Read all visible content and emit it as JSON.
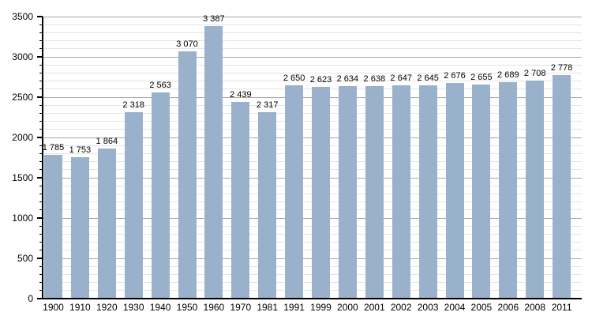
{
  "chart_data": {
    "type": "bar",
    "title": "",
    "xlabel": "",
    "ylabel": "",
    "categories": [
      "1900",
      "1910",
      "1920",
      "1930",
      "1940",
      "1950",
      "1960",
      "1970",
      "1981",
      "1991",
      "1999",
      "2000",
      "2001",
      "2002",
      "2003",
      "2004",
      "2005",
      "2006",
      "2008",
      "2011"
    ],
    "values": [
      1785,
      1753,
      1864,
      2318,
      2563,
      3070,
      3387,
      2439,
      2317,
      2650,
      2623,
      2634,
      2638,
      2647,
      2645,
      2676,
      2655,
      2689,
      2708,
      2778
    ],
    "value_labels": [
      "1 785",
      "1 753",
      "1 864",
      "2 318",
      "2 563",
      "3 070",
      "3 387",
      "2 439",
      "2 317",
      "2 650",
      "2 623",
      "2 634",
      "2 638",
      "2 647",
      "2 645",
      "2 676",
      "2 655",
      "2 689",
      "2 708",
      "2 778"
    ],
    "ylim": [
      0,
      3500
    ],
    "y_ticks": [
      0,
      500,
      1000,
      1500,
      2000,
      2500,
      3000,
      3500
    ],
    "y_minor_step": 100,
    "grid": true,
    "legend": false,
    "colors": {
      "bar": "#9AB1CB",
      "major_grid": "#a8a8a8",
      "minor_grid": "#e4e4e4",
      "axis": "#000000",
      "text": "#000000",
      "background": "#ffffff"
    }
  }
}
